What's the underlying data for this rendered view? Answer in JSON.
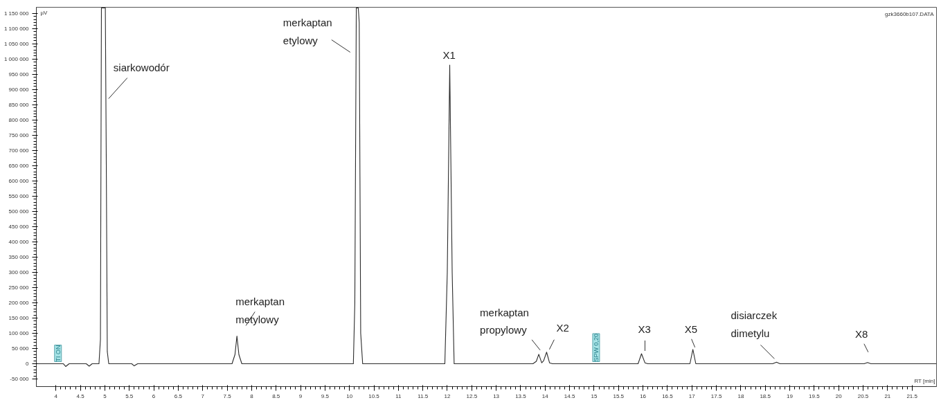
{
  "chart_data": {
    "type": "line",
    "xlabel": "RT [min]",
    "ylabel": "µV",
    "xlim": [
      3.6,
      22.0
    ],
    "ylim": [
      -75000,
      1170000
    ],
    "xticks": [
      4,
      4.5,
      5,
      5.5,
      6,
      6.5,
      7,
      7.5,
      8,
      8.5,
      9,
      9.5,
      10,
      10.5,
      11,
      11.5,
      12,
      12.5,
      13,
      13.5,
      14,
      14.5,
      15,
      15.5,
      16,
      16.5,
      17,
      17.5,
      18,
      18.5,
      19,
      19.5,
      20,
      20.5,
      21,
      21.5
    ],
    "yticks": [
      {
        "value": -50000,
        "label": "-50 000"
      },
      0,
      {
        "value": 50000,
        "label": "50 000"
      },
      {
        "value": 100000,
        "label": "100 000"
      },
      {
        "value": 150000,
        "label": "150 000"
      },
      {
        "value": 200000,
        "label": "200 000"
      },
      {
        "value": 250000,
        "label": "250 000"
      },
      {
        "value": 300000,
        "label": "300 000"
      },
      {
        "value": 350000,
        "label": "350 000"
      },
      {
        "value": 400000,
        "label": "400 000"
      },
      {
        "value": 450000,
        "label": "450 000"
      },
      {
        "value": 500000,
        "label": "500 000"
      },
      {
        "value": 550000,
        "label": "550 000"
      },
      {
        "value": 600000,
        "label": "600 000"
      },
      {
        "value": 650000,
        "label": "650 000"
      },
      {
        "value": 700000,
        "label": "700 000"
      },
      {
        "value": 750000,
        "label": "750 000"
      },
      {
        "value": 800000,
        "label": "800 000"
      },
      {
        "value": 850000,
        "label": "850 000"
      },
      {
        "value": 900000,
        "label": "900 000"
      },
      {
        "value": 950000,
        "label": "950 000"
      },
      {
        "value": 1000000,
        "label": "1 000 000"
      },
      {
        "value": 1050000,
        "label": "1 050 000"
      },
      {
        "value": 1100000,
        "label": "1 100 000"
      },
      {
        "value": 1150000,
        "label": "1 150 000"
      }
    ],
    "grid": false,
    "marker": "none",
    "line_style": "solid",
    "series": [
      {
        "color": "#2b2b2b",
        "x": [
          3.6,
          4.15,
          4.2,
          4.27,
          4.62,
          4.68,
          4.74,
          4.88,
          4.91,
          4.93,
          5.01,
          5.03,
          5.05,
          5.08,
          5.55,
          5.6,
          5.67,
          7.6,
          7.66,
          7.7,
          7.74,
          7.8,
          10.08,
          10.11,
          10.14,
          10.18,
          10.2,
          10.23,
          10.27,
          11.95,
          12.0,
          12.05,
          12.1,
          12.14,
          13.75,
          13.82,
          13.87,
          13.93,
          13.97,
          14.03,
          14.09,
          14.15,
          15.9,
          15.97,
          16.04,
          16.1,
          16.96,
          17.02,
          17.08,
          18.65,
          18.73,
          18.8,
          20.52,
          20.59,
          20.66,
          22.0
        ],
        "values": [
          0,
          0,
          -9000,
          0,
          0,
          -8000,
          0,
          0,
          80000,
          1168000,
          1168000,
          650000,
          40000,
          0,
          0,
          -7000,
          0,
          0,
          30000,
          91000,
          30000,
          0,
          0,
          200000,
          1168000,
          1168000,
          1120000,
          100000,
          0,
          0,
          300000,
          980000,
          300000,
          0,
          0,
          8000,
          31000,
          3000,
          10000,
          38000,
          3000,
          0,
          0,
          33000,
          3000,
          0,
          0,
          47000,
          0,
          0,
          5000,
          0,
          0,
          4000,
          0,
          0
        ]
      }
    ],
    "annotations": [
      {
        "text": "siarkowodór",
        "x": 5.02,
        "y": 870000
      },
      {
        "text": "merkaptan\netylowy",
        "x": 10.2,
        "y": 1120000
      },
      {
        "text": "X1",
        "x": 12.05,
        "y": 980000
      },
      {
        "text": "merkaptan\nmetylowy",
        "x": 7.7,
        "y": 91000
      },
      {
        "text": "merkaptan\npropylowy",
        "x": 13.87,
        "y": 31000
      },
      {
        "text": "X2",
        "x": 14.03,
        "y": 38000
      },
      {
        "text": "X3",
        "x": 15.97,
        "y": 33000
      },
      {
        "text": "X5",
        "x": 17.02,
        "y": 47000
      },
      {
        "text": "disiarczek\ndimetylu",
        "x": 18.73,
        "y": 5000
      },
      {
        "text": "X8",
        "x": 20.59,
        "y": 4000
      },
      {
        "text": "TI ON",
        "x": 4.0,
        "y": 0
      },
      {
        "text": "SPW 0,20",
        "x": 15.0,
        "y": 0
      },
      "gzk3660b107.DATA"
    ]
  }
}
